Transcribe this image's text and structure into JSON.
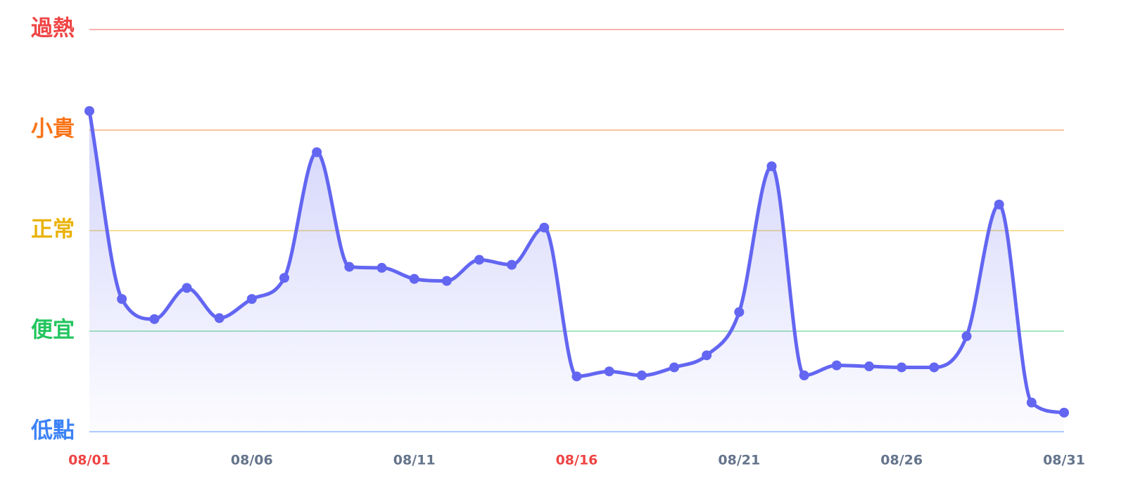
{
  "chart_data": {
    "type": "line",
    "categories": [
      "08/01",
      null,
      null,
      null,
      null,
      "08/06",
      null,
      null,
      null,
      null,
      "08/11",
      null,
      null,
      null,
      null,
      "08/16",
      null,
      null,
      null,
      null,
      "08/21",
      null,
      null,
      null,
      null,
      "08/26",
      null,
      null,
      null,
      null,
      "08/31"
    ],
    "series": [
      {
        "color": "#6366f1",
        "values": [
          3.19,
          1.32,
          1.12,
          1.43,
          1.13,
          1.32,
          1.53,
          2.78,
          1.64,
          1.63,
          1.52,
          1.5,
          1.71,
          1.66,
          2.03,
          0.55,
          0.6,
          0.56,
          0.64,
          0.76,
          1.19,
          2.64,
          0.56,
          0.66,
          0.65,
          0.64,
          0.64,
          0.95,
          2.26,
          0.29,
          0.19
        ]
      }
    ],
    "ylim": [
      0,
      4
    ],
    "yticks": [
      {
        "value": 0,
        "label": "低點"
      },
      {
        "value": 1,
        "label": "便宜"
      },
      {
        "value": 2,
        "label": "正常"
      },
      {
        "value": 3,
        "label": "小貴"
      },
      {
        "value": 4,
        "label": "過熱"
      }
    ],
    "ytick_colors": [
      "#3b82f6",
      "#22c55e",
      "#eab308",
      "#f97316",
      "#ef4444"
    ],
    "grid": true,
    "x_label_color": "#64748b",
    "highlight_categories": [
      0,
      15
    ],
    "highlight_color": "#ef4444"
  }
}
